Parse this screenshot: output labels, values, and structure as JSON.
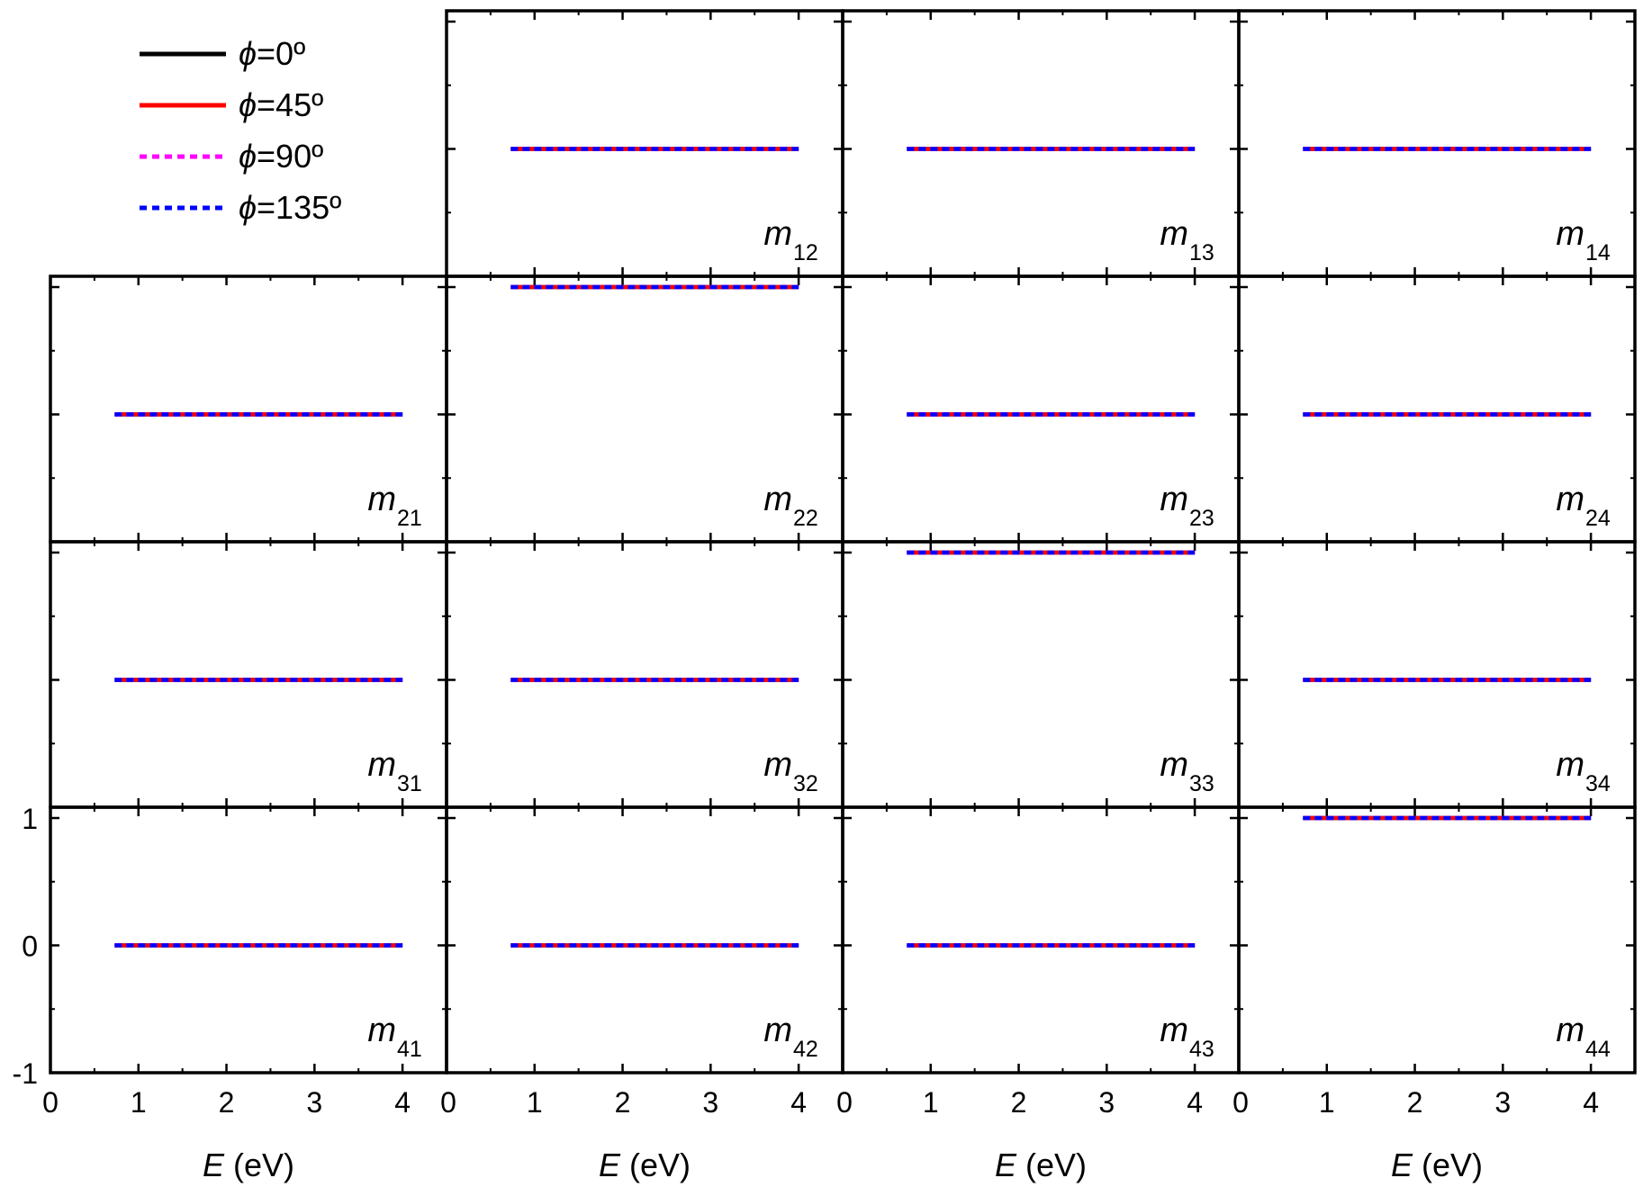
{
  "chart_data": {
    "type": "line",
    "layout": "4x4 grid of panels (Mueller matrix), panel m11 replaced by legend",
    "x_range": [
      0,
      4.5
    ],
    "y_range": [
      -1,
      1
    ],
    "x_ticks": [
      0,
      1,
      2,
      3,
      4
    ],
    "y_ticks": [
      -1,
      0,
      1
    ],
    "xlabel_italic": "E",
    "xlabel_rest": " (eV)",
    "legend": [
      {
        "label": "=0º",
        "color": "#000000",
        "dash": "solid"
      },
      {
        "label": "=45º",
        "color": "#ff0000",
        "dash": "solid"
      },
      {
        "label": "=90º",
        "color": "#ff00ff",
        "dash": "dashed"
      },
      {
        "label": "=135º",
        "color": "#0000ff",
        "dash": "dashed"
      }
    ],
    "legend_symbol": "ϕ",
    "energy_range": [
      0.73,
      4.0
    ],
    "panels": [
      {
        "id": "m12",
        "letter": "m",
        "sub": "12",
        "row": 0,
        "col": 1,
        "value": 0
      },
      {
        "id": "m13",
        "letter": "m",
        "sub": "13",
        "row": 0,
        "col": 2,
        "value": 0
      },
      {
        "id": "m14",
        "letter": "m",
        "sub": "14",
        "row": 0,
        "col": 3,
        "value": 0
      },
      {
        "id": "m21",
        "letter": "m",
        "sub": "21",
        "row": 1,
        "col": 0,
        "value": 0
      },
      {
        "id": "m22",
        "letter": "m",
        "sub": "22",
        "row": 1,
        "col": 1,
        "value": 1
      },
      {
        "id": "m23",
        "letter": "m",
        "sub": "23",
        "row": 1,
        "col": 2,
        "value": 0
      },
      {
        "id": "m24",
        "letter": "m",
        "sub": "24",
        "row": 1,
        "col": 3,
        "value": 0
      },
      {
        "id": "m31",
        "letter": "m",
        "sub": "31",
        "row": 2,
        "col": 0,
        "value": 0
      },
      {
        "id": "m32",
        "letter": "m",
        "sub": "32",
        "row": 2,
        "col": 1,
        "value": 0
      },
      {
        "id": "m33",
        "letter": "m",
        "sub": "33",
        "row": 2,
        "col": 2,
        "value": 1
      },
      {
        "id": "m34",
        "letter": "m",
        "sub": "34",
        "row": 2,
        "col": 3,
        "value": 0
      },
      {
        "id": "m41",
        "letter": "m",
        "sub": "41",
        "row": 3,
        "col": 0,
        "value": 0
      },
      {
        "id": "m42",
        "letter": "m",
        "sub": "42",
        "row": 3,
        "col": 1,
        "value": 0
      },
      {
        "id": "m43",
        "letter": "m",
        "sub": "43",
        "row": 3,
        "col": 2,
        "value": 0
      },
      {
        "id": "m44",
        "letter": "m",
        "sub": "44",
        "row": 3,
        "col": 3,
        "value": 1
      }
    ]
  }
}
